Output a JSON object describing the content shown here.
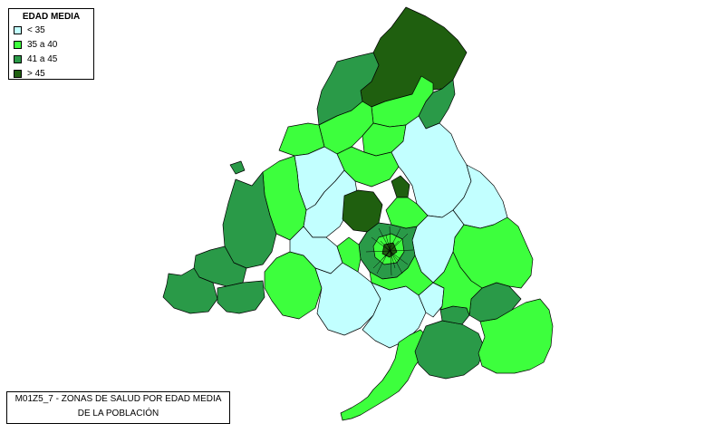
{
  "legend": {
    "title": "EDAD MEDIA",
    "items": [
      {
        "label": "< 35",
        "color": "#c2ffff"
      },
      {
        "label": "35 a 40",
        "color": "#3dff3d"
      },
      {
        "label": "41 a 45",
        "color": "#2a9a48"
      },
      {
        "label": "> 45",
        "color": "#1f5f0f"
      }
    ]
  },
  "caption": {
    "line1": "M01Z5_7 - ZONAS DE SALUD POR EDAD MEDIA",
    "line2": "DE LA POBLACIÓN"
  },
  "map": {
    "region": "Comunidad de Madrid",
    "zone_border_color": "#000000"
  }
}
